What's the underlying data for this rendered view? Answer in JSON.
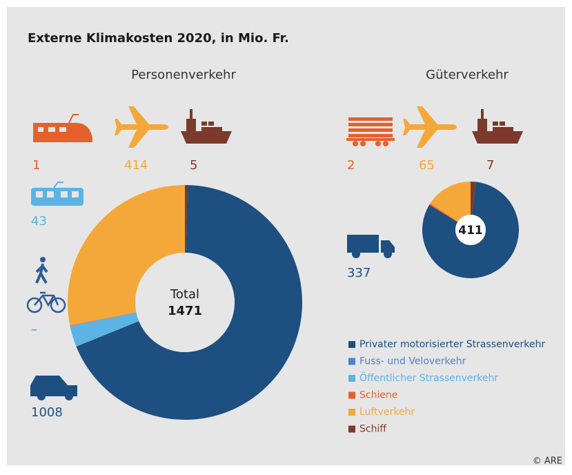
{
  "chart_data": {
    "type": "donut",
    "title": "Externe Klimakosten 2020, in Mio. Fr.",
    "source": "© ARE",
    "categories": [
      "Privater motorisierter Strassenverkehr",
      "Fuss- und Veloverkehr",
      "Öffentlicher Strassenverkehr",
      "Schiene",
      "Luftverkehr",
      "Schiff"
    ],
    "colors": [
      "#1d4f80",
      "#4f82c8",
      "#5cb3e4",
      "#e5612c",
      "#f5a83a",
      "#7b3a2b"
    ],
    "series": [
      {
        "name": "Personenverkehr",
        "values": [
          1008,
          null,
          43,
          1,
          414,
          5
        ],
        "value_labels": [
          "1008",
          "–",
          "43",
          "1",
          "414",
          "5"
        ],
        "center_label": "Total",
        "total": 1471
      },
      {
        "name": "Güterverkehr",
        "values": [
          337,
          null,
          null,
          2,
          65,
          7
        ],
        "total": 411
      }
    ]
  }
}
